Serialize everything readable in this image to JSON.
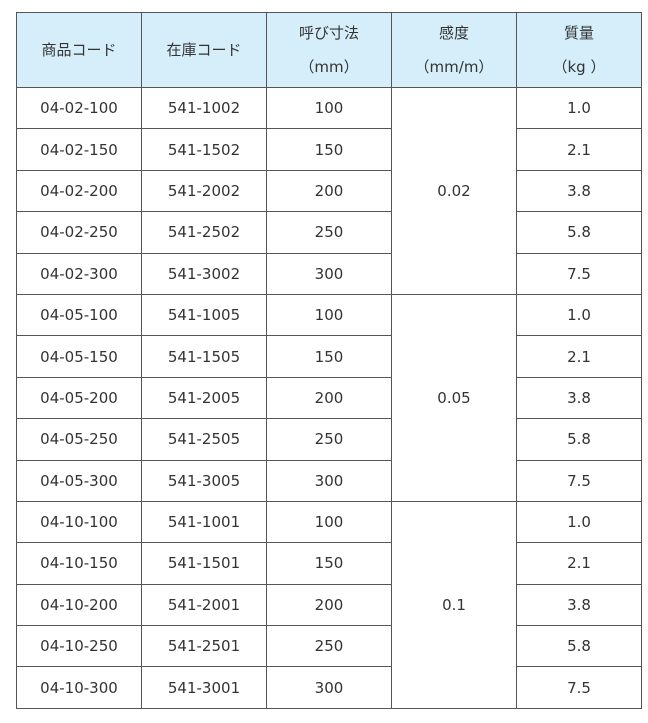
{
  "headers": [
    {
      "line1": "商品コード",
      "line2": ""
    },
    {
      "line1": "在庫コード",
      "line2": ""
    },
    {
      "line1": "呼び寸法",
      "line2": "（mm）"
    },
    {
      "line1": "感度",
      "line2": "（mm/m）"
    },
    {
      "line1": "質量",
      "line2": "（kg ）"
    }
  ],
  "groups": [
    {
      "sensitivity": "0.02",
      "rows": [
        [
          "04-02-100",
          "541-1002",
          "100",
          "1.0"
        ],
        [
          "04-02-150",
          "541-1502",
          "150",
          "2.1"
        ],
        [
          "04-02-200",
          "541-2002",
          "200",
          "3.8"
        ],
        [
          "04-02-250",
          "541-2502",
          "250",
          "5.8"
        ],
        [
          "04-02-300",
          "541-3002",
          "300",
          "7.5"
        ]
      ]
    },
    {
      "sensitivity": "0.05",
      "rows": [
        [
          "04-05-100",
          "541-1005",
          "100",
          "1.0"
        ],
        [
          "04-05-150",
          "541-1505",
          "150",
          "2.1"
        ],
        [
          "04-05-200",
          "541-2005",
          "200",
          "3.8"
        ],
        [
          "04-05-250",
          "541-2505",
          "250",
          "5.8"
        ],
        [
          "04-05-300",
          "541-3005",
          "300",
          "7.5"
        ]
      ]
    },
    {
      "sensitivity": "0.1",
      "rows": [
        [
          "04-10-100",
          "541-1001",
          "100",
          "1.0"
        ],
        [
          "04-10-150",
          "541-1501",
          "150",
          "2.1"
        ],
        [
          "04-10-200",
          "541-2001",
          "200",
          "3.8"
        ],
        [
          "04-10-250",
          "541-2501",
          "250",
          "5.8"
        ],
        [
          "04-10-300",
          "541-3001",
          "300",
          "7.5"
        ]
      ]
    }
  ]
}
